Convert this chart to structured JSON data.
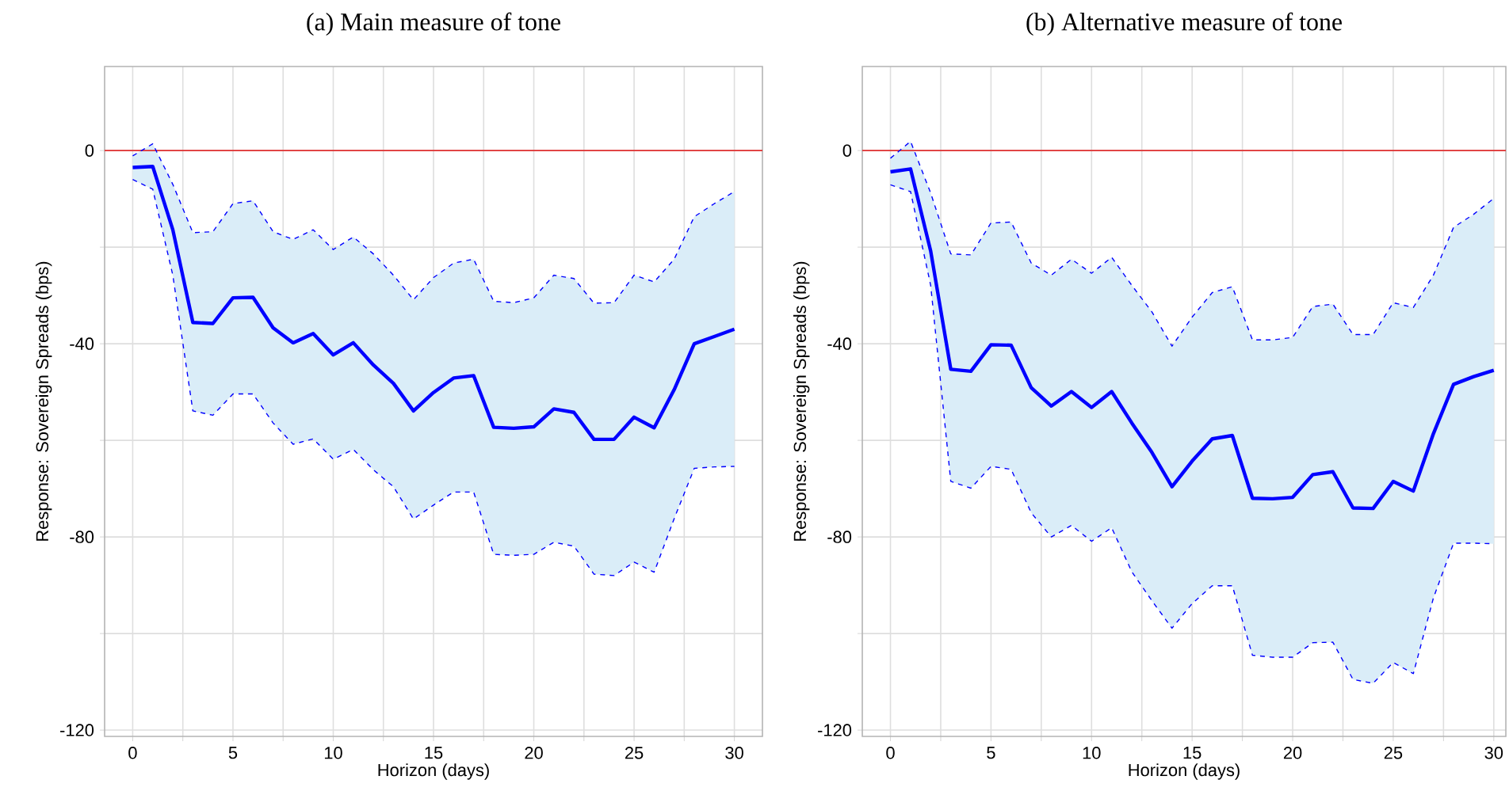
{
  "chart_data": [
    {
      "type": "line",
      "title": "(a) Main measure of tone",
      "xlabel": "Horizon (days)",
      "ylabel": "Response: Sovereign Spreads (bps)",
      "x": [
        0,
        1,
        2,
        3,
        4,
        5,
        6,
        7,
        8,
        9,
        10,
        11,
        12,
        13,
        14,
        15,
        16,
        17,
        18,
        19,
        20,
        21,
        22,
        23,
        24,
        25,
        26,
        27,
        28,
        29,
        30
      ],
      "series": [
        {
          "color": "#0000ff",
          "line_style": "solid",
          "values": [
            -3.5,
            -3.3,
            -16.4,
            -35.6,
            -35.8,
            -30.5,
            -30.4,
            -36.7,
            -39.8,
            -37.9,
            -42.3,
            -39.8,
            -44.4,
            -48.2,
            -53.9,
            -50.1,
            -47.1,
            -46.6,
            -57.3,
            -57.5,
            -57.2,
            -53.5,
            -54.2,
            -59.8,
            -59.8,
            -55.2,
            -57.4,
            -49.5,
            -40,
            -38.5,
            -37
          ],
          "upper": [
            -1.1,
            1.4,
            -7,
            -17,
            -16.8,
            -11,
            -10.4,
            -16.8,
            -18.4,
            -16.4,
            -20.5,
            -17.9,
            -21.4,
            -25.8,
            -30.9,
            -26.3,
            -23.3,
            -22.5,
            -31.2,
            -31.5,
            -30.5,
            -25.8,
            -26.5,
            -31.6,
            -31.5,
            -25.8,
            -27.2,
            -22.5,
            -13.7,
            -11,
            -8.5
          ],
          "lower": [
            -6,
            -8,
            -25.8,
            -53.9,
            -54.8,
            -50.4,
            -50.4,
            -56.4,
            -60.8,
            -59.7,
            -63.9,
            -61.9,
            -66.1,
            -69.6,
            -76.3,
            -73.4,
            -70.7,
            -70.7,
            -83.6,
            -83.8,
            -83.6,
            -81.1,
            -81.9,
            -87.7,
            -88,
            -85.2,
            -87.3,
            -76.2,
            -65.8,
            -65.5,
            -65.4
          ]
        },
        {
          "color": "#0000ff",
          "line_style": "dashed",
          "values": [
            -1.1,
            1.4,
            -7,
            -17,
            -16.8,
            -11,
            -10.4,
            -16.8,
            -18.4,
            -16.4,
            -20.5,
            -17.9,
            -21.4,
            -25.8,
            -30.9,
            -26.3,
            -23.3,
            -22.5,
            -31.2,
            -31.5,
            -30.5,
            -25.8,
            -26.5,
            -31.6,
            -31.5,
            -25.8,
            -27.2,
            -22.5,
            -13.7,
            -11,
            -8.5
          ]
        },
        {
          "color": "#0000ff",
          "line_style": "dashed",
          "values": [
            -6,
            -8,
            -25.8,
            -53.9,
            -54.8,
            -50.4,
            -50.4,
            -56.4,
            -60.8,
            -59.7,
            -63.9,
            -61.9,
            -66.1,
            -69.6,
            -76.3,
            -73.4,
            -70.7,
            -70.7,
            -83.6,
            -83.8,
            -83.6,
            -81.1,
            -81.9,
            -87.7,
            -88,
            -85.2,
            -87.3,
            -76.2,
            -65.8,
            -65.5,
            -65.4
          ]
        }
      ],
      "xlim": [
        -1.4,
        31.4
      ],
      "ylim": [
        -121.3,
        17.4
      ],
      "xticks": [
        0,
        {
          "value": 2.5,
          "label": null
        },
        5,
        {
          "value": 7.5,
          "label": null
        },
        10,
        {
          "value": 12.5,
          "label": null
        },
        15,
        {
          "value": 17.5,
          "label": null
        },
        20,
        {
          "value": 22.5,
          "label": null
        },
        25,
        {
          "value": 27.5,
          "label": null
        },
        30
      ],
      "yticks": [
        -120,
        {
          "value": -100,
          "label": null
        },
        -80,
        {
          "value": -60,
          "label": null
        },
        -40,
        {
          "value": -20,
          "label": null
        },
        0
      ],
      "ref_lines": [
        {
          "axis": "y",
          "value": 0,
          "color": "#e03030"
        }
      ],
      "grid": true
    },
    {
      "type": "line",
      "title": "(b) Alternative measure of tone",
      "xlabel": "Horizon (days)",
      "ylabel": "Response: Sovereign Spreads (bps)",
      "x": [
        0,
        1,
        2,
        3,
        4,
        5,
        6,
        7,
        8,
        9,
        10,
        11,
        12,
        13,
        14,
        15,
        16,
        17,
        18,
        19,
        20,
        21,
        22,
        23,
        24,
        25,
        26,
        27,
        28,
        29,
        30
      ],
      "series": [
        {
          "color": "#0000ff",
          "line_style": "solid",
          "values": [
            -4.4,
            -3.8,
            -20.8,
            -45.3,
            -45.7,
            -40.2,
            -40.3,
            -49.1,
            -52.9,
            -49.9,
            -53.2,
            -49.9,
            -56.4,
            -62.5,
            -69.6,
            -64.3,
            -59.7,
            -59,
            -72,
            -72.1,
            -71.8,
            -67.1,
            -66.5,
            -74,
            -74.1,
            -68.5,
            -70.5,
            -58.6,
            -48.4,
            -46.8,
            -45.5
          ],
          "upper": [
            -1.6,
            1.9,
            -8.8,
            -21.4,
            -21.6,
            -15,
            -14.8,
            -23.3,
            -25.8,
            -22.5,
            -25.4,
            -22.1,
            -27.9,
            -33.4,
            -40.5,
            -34.5,
            -29.4,
            -28.2,
            -39.2,
            -39.2,
            -38.7,
            -32.3,
            -31.8,
            -38.1,
            -38.1,
            -31.5,
            -32.5,
            -25.8,
            -15.9,
            -13.2,
            -9.9
          ],
          "lower": [
            -7.1,
            -8.5,
            -27.9,
            -68.5,
            -69.9,
            -65.4,
            -66,
            -75,
            -80,
            -77.6,
            -80.9,
            -78.1,
            -87.2,
            -93.2,
            -98.9,
            -93.8,
            -90.1,
            -90.1,
            -104.5,
            -104.9,
            -104.9,
            -101.9,
            -101.8,
            -109.5,
            -110.3,
            -106,
            -108.3,
            -92.6,
            -81.3,
            -81.3,
            -81.4
          ]
        },
        {
          "color": "#0000ff",
          "line_style": "dashed",
          "values": [
            -1.6,
            1.9,
            -8.8,
            -21.4,
            -21.6,
            -15,
            -14.8,
            -23.3,
            -25.8,
            -22.5,
            -25.4,
            -22.1,
            -27.9,
            -33.4,
            -40.5,
            -34.5,
            -29.4,
            -28.2,
            -39.2,
            -39.2,
            -38.7,
            -32.3,
            -31.8,
            -38.1,
            -38.1,
            -31.5,
            -32.5,
            -25.8,
            -15.9,
            -13.2,
            -9.9
          ]
        },
        {
          "color": "#0000ff",
          "line_style": "dashed",
          "values": [
            -7.1,
            -8.5,
            -27.9,
            -68.5,
            -69.9,
            -65.4,
            -66,
            -75,
            -80,
            -77.6,
            -80.9,
            -78.1,
            -87.2,
            -93.2,
            -98.9,
            -93.8,
            -90.1,
            -90.1,
            -104.5,
            -104.9,
            -104.9,
            -101.9,
            -101.8,
            -109.5,
            -110.3,
            -106,
            -108.3,
            -92.6,
            -81.3,
            -81.3,
            -81.4
          ]
        }
      ],
      "xlim": [
        -1.4,
        30.6
      ],
      "ylim": [
        -121.3,
        17.4
      ],
      "xticks": [
        0,
        {
          "value": 2.5,
          "label": null
        },
        5,
        {
          "value": 7.5,
          "label": null
        },
        10,
        {
          "value": 12.5,
          "label": null
        },
        15,
        {
          "value": 17.5,
          "label": null
        },
        20,
        {
          "value": 22.5,
          "label": null
        },
        25,
        {
          "value": 27.5,
          "label": null
        },
        30
      ],
      "yticks": [
        -120,
        {
          "value": -100,
          "label": null
        },
        -80,
        {
          "value": -60,
          "label": null
        },
        -40,
        {
          "value": -20,
          "label": null
        },
        0
      ],
      "ref_lines": [
        {
          "axis": "y",
          "value": 0,
          "color": "#e03030"
        }
      ],
      "grid": true
    }
  ]
}
